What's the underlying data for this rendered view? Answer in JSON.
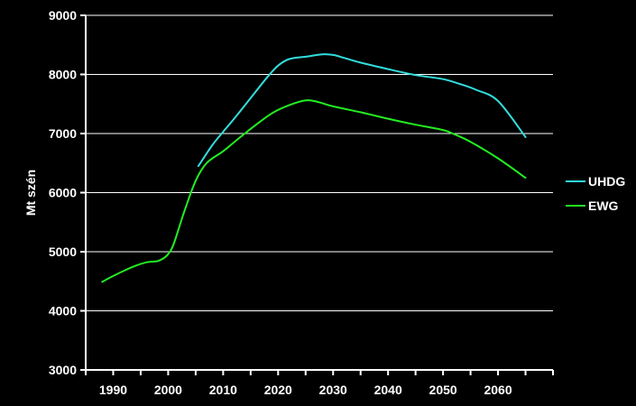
{
  "chart_data": {
    "type": "line",
    "title": "",
    "xlabel": "",
    "ylabel": "Mt szén",
    "xlim": [
      1985,
      2070
    ],
    "ylim": [
      3000,
      9000
    ],
    "x_ticks": [
      1990,
      2000,
      2010,
      2020,
      2030,
      2040,
      2050,
      2060
    ],
    "y_ticks": [
      3000,
      4000,
      5000,
      6000,
      7000,
      8000,
      9000
    ],
    "grid": "horizontal",
    "legend": "right",
    "background": "#000000",
    "series": [
      {
        "name": "UHDG",
        "color": "#33dddd",
        "x": [
          2005.5,
          2008,
          2010,
          2012,
          2015,
          2018,
          2020,
          2022,
          2025,
          2028,
          2030,
          2032,
          2035,
          2040,
          2045,
          2050,
          2053,
          2056,
          2060,
          2065
        ],
        "y": [
          6450,
          6800,
          7030,
          7250,
          7600,
          7950,
          8150,
          8260,
          8300,
          8340,
          8330,
          8280,
          8200,
          8090,
          7990,
          7920,
          7840,
          7740,
          7550,
          6940
        ]
      },
      {
        "name": "EWG",
        "color": "#22ee22",
        "x": [
          1988,
          1990,
          1992,
          1994,
          1996,
          1998,
          1999,
          2000,
          2001,
          2003,
          2005,
          2007,
          2010,
          2013,
          2016,
          2019,
          2022,
          2025,
          2027,
          2030,
          2035,
          2040,
          2045,
          2050,
          2052,
          2055,
          2060,
          2065
        ],
        "y": [
          4490,
          4590,
          4680,
          4760,
          4820,
          4840,
          4880,
          4960,
          5130,
          5700,
          6200,
          6500,
          6700,
          6930,
          7150,
          7350,
          7480,
          7560,
          7540,
          7460,
          7360,
          7250,
          7150,
          7060,
          6990,
          6860,
          6580,
          6250
        ]
      }
    ]
  }
}
